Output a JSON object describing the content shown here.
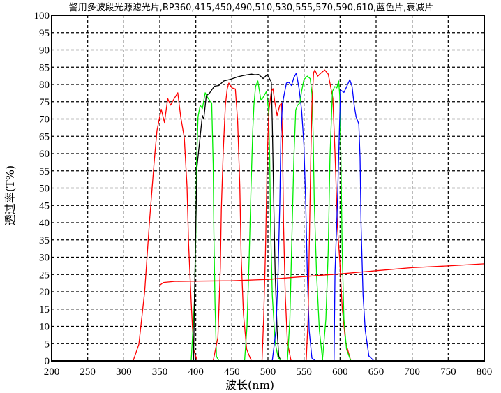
{
  "chart_data": {
    "type": "line",
    "title": "警用多波段光源滤光片,BP360,415,450,490,510,530,555,570,590,610,蓝色片,衰减片",
    "xlabel": "波长(nm)",
    "ylabel": "透过率(T%)",
    "xlim": [
      200,
      800
    ],
    "ylim": [
      0,
      100
    ],
    "xticks": [
      200,
      250,
      300,
      350,
      400,
      450,
      500,
      550,
      600,
      650,
      700,
      750,
      800
    ],
    "yticks": [
      0,
      5,
      10,
      15,
      20,
      25,
      30,
      35,
      40,
      45,
      50,
      55,
      60,
      65,
      70,
      75,
      80,
      85,
      90,
      95,
      100
    ],
    "grid": true,
    "grid_style": "dashed",
    "series": [
      {
        "color": "#ff0000",
        "x": [
          200,
          313,
          321,
          329,
          335.6,
          342,
          346,
          352,
          356.5,
          361,
          365,
          369.4,
          375,
          379,
          384,
          387.7,
          390,
          393.5,
          396.8,
          402
        ],
        "y": [
          0,
          0,
          4.8,
          20,
          40,
          57,
          66.6,
          72.8,
          69,
          75.9,
          74,
          75.7,
          77.6,
          70.6,
          64.6,
          50.5,
          33.7,
          17,
          3.4,
          0
        ]
      },
      {
        "color": "#00ee00",
        "x": [
          350,
          393.5,
          398,
          400,
          401,
          403,
          406,
          409,
          413,
          417,
          422,
          424,
          425,
          426.5,
          428.6,
          432
        ],
        "y": [
          0,
          0,
          17,
          37,
          57,
          70.6,
          74,
          73,
          77.6,
          76,
          74.6,
          57,
          37,
          17,
          1.3,
          0
        ]
      },
      {
        "color": "#000000",
        "x": [
          396.8,
          398,
          400,
          401.6,
          404,
          406.5,
          409,
          411,
          414.5,
          419,
          425.7,
          432,
          438.6,
          448,
          458,
          466,
          477,
          482,
          487,
          493.4,
          499,
          504.6,
          506,
          508,
          510,
          512.7,
          515,
          518
        ],
        "y": [
          0,
          17,
          40,
          56,
          61,
          66,
          71,
          70,
          76.7,
          77.5,
          79.5,
          79.7,
          81,
          81.5,
          82.2,
          82.6,
          83,
          82.8,
          82.9,
          81.7,
          82.9,
          80.7,
          69,
          45.8,
          25.6,
          8.8,
          1.4,
          0
        ]
      },
      {
        "color": "#ff0000",
        "x": [
          424,
          430.6,
          434,
          435.4,
          438,
          441,
          443.5,
          445.7,
          450,
          454.8,
          458,
          461,
          462.8,
          466,
          470.5,
          477
        ],
        "y": [
          0,
          6.8,
          27,
          43.8,
          60.5,
          74,
          78.7,
          80.4,
          79,
          78.7,
          69.3,
          50.5,
          30.3,
          13.5,
          3.4,
          0
        ]
      },
      {
        "color": "#00ee00",
        "x": [
          467.6,
          471,
          474,
          476.6,
          479,
          480.5,
          482.8,
          486,
          490,
          491.8,
          498,
          500.8,
          502.4,
          503.7,
          506,
          510,
          514,
          518
        ],
        "y": [
          0,
          10,
          30,
          50.5,
          67,
          74,
          79.4,
          81,
          75.7,
          75.7,
          78,
          72.6,
          59,
          39,
          19,
          5.4,
          1,
          0
        ]
      },
      {
        "color": "#ff0000",
        "x": [
          491.8,
          494,
          496.6,
          499,
          501.5,
          504.6,
          507,
          509.5,
          512.7,
          516.5,
          519,
          520.4,
          521.7,
          524,
          527,
          532
        ],
        "y": [
          0,
          12,
          32,
          59,
          72.6,
          78,
          78.8,
          75,
          71,
          74,
          74.6,
          59,
          39,
          19,
          5.4,
          0
        ]
      },
      {
        "color": "#0000ff",
        "x": [
          506,
          511,
          514,
          516.5,
          518,
          520,
          523,
          525.6,
          529,
          532.6,
          536,
          539.4,
          543.3,
          546.6,
          549.8,
          552.4,
          554.6,
          557.2,
          561,
          566
        ],
        "y": [
          0,
          8.8,
          25.6,
          45.8,
          66,
          74.3,
          77.7,
          80.4,
          80.6,
          79.7,
          82,
          83.3,
          78.7,
          72.6,
          62.6,
          45.8,
          25.6,
          8.8,
          0.8,
          0
        ]
      },
      {
        "color": "#00ee00",
        "x": [
          527,
          530.4,
          533.6,
          536,
          538.5,
          541,
          544.3,
          546.6,
          549.8,
          554.6,
          558.5,
          561,
          562.6,
          564.3,
          567.4,
          571.3,
          576
        ],
        "y": [
          0,
          12,
          39,
          59,
          72.6,
          74,
          74.6,
          78,
          81.4,
          82.4,
          81.7,
          77.4,
          66,
          45.8,
          25.6,
          8.8,
          0
        ]
      },
      {
        "color": "#ff0000",
        "x": [
          553,
          555.6,
          557.8,
          559.4,
          561,
          563.3,
          565,
          569,
          574,
          578.7,
          583.6,
          590,
          593.2,
          596.4,
          599.6,
          603,
          607.7,
          615
        ],
        "y": [
          0,
          12,
          39,
          59,
          74,
          83.4,
          84.2,
          82.4,
          83.4,
          84.2,
          83,
          76,
          59,
          39,
          29,
          15.5,
          5.4,
          0
        ]
      },
      {
        "color": "#00ee00",
        "x": [
          575.5,
          580.3,
          583.6,
          586,
          589.4,
          592.6,
          595.5,
          598,
          599.6,
          601.2,
          603,
          605.4,
          609,
          615
        ],
        "y": [
          0,
          12,
          32,
          59,
          78,
          79.4,
          79,
          81,
          76.7,
          59,
          32,
          12,
          3.4,
          0
        ]
      },
      {
        "color": "#0000ff",
        "x": [
          591.6,
          593,
          596.4,
          599,
          600.6,
          605.4,
          609.3,
          613.5,
          616.7,
          619.6,
          622.2,
          626,
          627.7,
          629.2,
          631.9,
          635,
          640,
          647,
          800
        ],
        "y": [
          0,
          25.6,
          45.8,
          66,
          78.4,
          77.7,
          79.4,
          81.4,
          79.4,
          74,
          70.6,
          68.6,
          59,
          39,
          19,
          8.8,
          1.4,
          0,
          0
        ]
      },
      {
        "color": "#ff0000",
        "x": [
          350,
          355,
          370,
          400,
          450,
          500,
          550,
          600,
          650,
          700,
          750,
          800
        ],
        "y": [
          21.9,
          22.7,
          23.0,
          23.1,
          23.2,
          23.6,
          24.4,
          25.2,
          26.1,
          27.0,
          27.5,
          28.1
        ]
      }
    ]
  }
}
